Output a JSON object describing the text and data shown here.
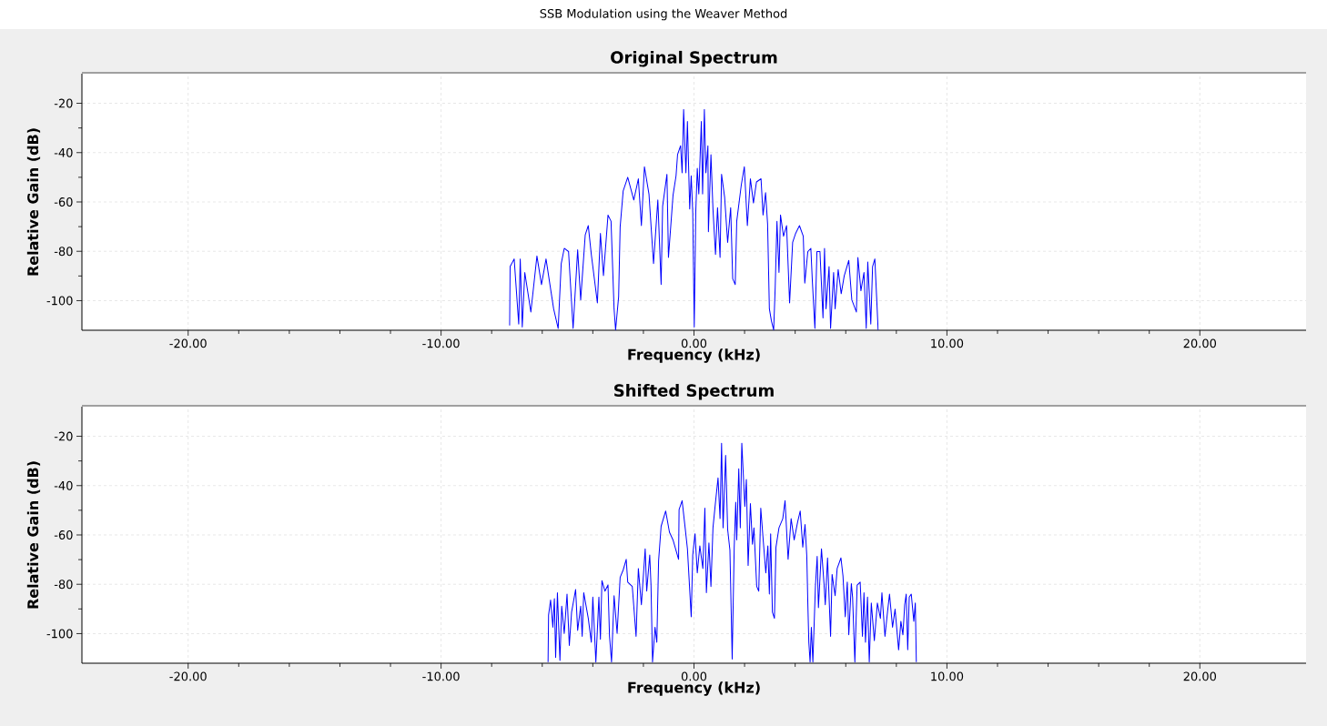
{
  "chart_data": [
    {
      "type": "line",
      "title": "Original Spectrum",
      "xlabel": "Frequency (kHz)",
      "ylabel": "Relative Gain (dB)",
      "annotations": [
        "SSB Modulation using the Weaver Method"
      ],
      "xlim": [
        -24.2,
        24.2
      ],
      "ylim": [
        -112,
        -8
      ],
      "xticks": [
        {
          "value": -20,
          "label": "-20.00"
        },
        {
          "value": -10,
          "label": "-10.00"
        },
        {
          "value": 0,
          "label": "0.00"
        },
        {
          "value": 10,
          "label": "10.00"
        },
        {
          "value": 20,
          "label": "20.00"
        }
      ],
      "yticks": [
        -100,
        -80,
        -60,
        -40,
        -20
      ],
      "grid": true,
      "x": [
        -7.29,
        -7.27,
        -7.11,
        -6.93,
        -6.87,
        -6.79,
        -6.69,
        -6.45,
        -6.21,
        -6.03,
        -5.85,
        -5.55,
        -5.37,
        -5.25,
        -5.13,
        -4.96,
        -4.78,
        -4.6,
        -4.48,
        -4.3,
        -4.18,
        -4.06,
        -3.82,
        -3.7,
        -3.58,
        -3.4,
        -3.28,
        -3.16,
        -3.1,
        -2.98,
        -2.92,
        -2.8,
        -2.62,
        -2.38,
        -2.2,
        -2.08,
        -1.96,
        -1.78,
        -1.6,
        -1.43,
        -1.3,
        -1.24,
        -1.07,
        -1.01,
        -0.83,
        -0.71,
        -0.65,
        -0.53,
        -0.47,
        -0.41,
        -0.32,
        -0.26,
        -0.17,
        -0.11,
        -0.05,
        0.01,
        0.07,
        0.13,
        0.19,
        0.29,
        0.34,
        0.41,
        0.47,
        0.55,
        0.57,
        0.67,
        0.75,
        0.85,
        0.93,
        1.03,
        1.09,
        1.21,
        1.33,
        1.45,
        1.53,
        1.63,
        1.69,
        1.87,
        1.99,
        2.11,
        2.23,
        2.35,
        2.47,
        2.65,
        2.73,
        2.83,
        2.91,
        2.98,
        3.06,
        3.15,
        3.21,
        3.28,
        3.36,
        3.42,
        3.54,
        3.66,
        3.78,
        3.9,
        4.02,
        4.17,
        4.32,
        4.38,
        4.5,
        4.62,
        4.68,
        4.78,
        4.86,
        4.98,
        5.1,
        5.16,
        5.22,
        5.34,
        5.4,
        5.52,
        5.58,
        5.7,
        5.82,
        5.94,
        6.12,
        6.24,
        6.42,
        6.48,
        6.6,
        6.72,
        6.81,
        6.87,
        6.99,
        7.06,
        7.15,
        7.22,
        7.28
      ],
      "series": [
        {
          "color": "#0000ff",
          "values": [
            -110.1,
            -86.2,
            -83.1,
            -109.5,
            -83.1,
            -110.7,
            -88.6,
            -104.6,
            -81.9,
            -93.5,
            -83.1,
            -103.3,
            -111.3,
            -85.0,
            -78.8,
            -80.1,
            -111.3,
            -79.4,
            -99.7,
            -73.3,
            -69.6,
            -81.3,
            -100.9,
            -72.7,
            -89.9,
            -65.3,
            -67.8,
            -103.3,
            -111.9,
            -98.4,
            -70.2,
            -55.5,
            -50.0,
            -59.2,
            -50.6,
            -69.6,
            -45.7,
            -56.8,
            -85.0,
            -59.2,
            -93.5,
            -61.7,
            -48.8,
            -82.5,
            -57.4,
            -49.4,
            -40.8,
            -37.2,
            -48.2,
            -22.5,
            -48.2,
            -27.4,
            -62.9,
            -49.4,
            -64.1,
            -110.7,
            -64.1,
            -46.4,
            -56.8,
            -27.4,
            -56.8,
            -22.5,
            -48.2,
            -37.2,
            -72.1,
            -40.8,
            -62.9,
            -81.3,
            -62.3,
            -82.5,
            -48.8,
            -58.0,
            -76.4,
            -62.3,
            -91.1,
            -93.5,
            -67.8,
            -53.1,
            -45.7,
            -69.6,
            -50.6,
            -60.4,
            -51.9,
            -50.6,
            -65.3,
            -56.2,
            -69.0,
            -103.3,
            -108.2,
            -111.9,
            -94.8,
            -67.8,
            -88.6,
            -65.3,
            -73.9,
            -69.6,
            -100.9,
            -76.4,
            -72.7,
            -69.6,
            -73.9,
            -92.9,
            -80.1,
            -78.8,
            -92.3,
            -111.3,
            -80.1,
            -80.1,
            -107.0,
            -78.8,
            -103.3,
            -86.2,
            -111.3,
            -88.6,
            -103.3,
            -87.4,
            -97.2,
            -89.9,
            -83.7,
            -99.7,
            -104.6,
            -82.5,
            -96.0,
            -88.6,
            -111.3,
            -84.3,
            -109.5,
            -86.2,
            -83.1,
            -98.4,
            -111.9
          ]
        }
      ]
    },
    {
      "type": "line",
      "title": "Shifted Spectrum",
      "xlabel": "Frequency (kHz)",
      "ylabel": "Relative Gain (dB)",
      "xlim": [
        -24.2,
        24.2
      ],
      "ylim": [
        -112,
        -8
      ],
      "xticks": [
        {
          "value": -20,
          "label": "-20.00"
        },
        {
          "value": -10,
          "label": "-10.00"
        },
        {
          "value": 0,
          "label": "0.00"
        },
        {
          "value": 10,
          "label": "10.00"
        },
        {
          "value": 20,
          "label": "20.00"
        }
      ],
      "yticks": [
        -100,
        -80,
        -60,
        -40,
        -20
      ],
      "grid": true,
      "x": [
        -5.77,
        -5.75,
        -5.67,
        -5.58,
        -5.52,
        -5.47,
        -5.4,
        -5.3,
        -5.23,
        -5.13,
        -5.02,
        -4.93,
        -4.84,
        -4.68,
        -4.6,
        -4.48,
        -4.42,
        -4.36,
        -4.18,
        -4.06,
        -4.0,
        -3.88,
        -3.76,
        -3.7,
        -3.64,
        -3.52,
        -3.4,
        -3.34,
        -3.26,
        -3.16,
        -3.04,
        -2.92,
        -2.8,
        -2.68,
        -2.62,
        -2.44,
        -2.29,
        -2.2,
        -2.08,
        -1.93,
        -1.87,
        -1.75,
        -1.7,
        -1.64,
        -1.54,
        -1.47,
        -1.4,
        -1.3,
        -1.12,
        -0.97,
        -0.83,
        -0.61,
        -0.59,
        -0.47,
        -0.35,
        -0.26,
        -0.11,
        -0.05,
        0.04,
        0.13,
        0.23,
        0.35,
        0.43,
        0.49,
        0.59,
        0.67,
        0.75,
        0.85,
        0.95,
        1.03,
        1.09,
        1.15,
        1.25,
        1.33,
        1.42,
        1.51,
        1.59,
        1.65,
        1.69,
        1.77,
        1.83,
        1.89,
        2.01,
        2.07,
        2.14,
        2.23,
        2.31,
        2.37,
        2.48,
        2.56,
        2.64,
        2.74,
        2.84,
        2.92,
        2.98,
        3.03,
        3.1,
        3.18,
        3.24,
        3.36,
        3.51,
        3.6,
        3.72,
        3.84,
        3.96,
        4.1,
        4.2,
        4.3,
        4.39,
        4.46,
        4.5,
        4.54,
        4.59,
        4.64,
        4.7,
        4.8,
        4.87,
        4.92,
        5.04,
        5.14,
        5.19,
        5.28,
        5.4,
        5.46,
        5.58,
        5.66,
        5.81,
        5.89,
        5.98,
        6.06,
        6.12,
        6.22,
        6.27,
        6.36,
        6.45,
        6.57,
        6.66,
        6.72,
        6.78,
        6.86,
        6.93,
        7.01,
        7.13,
        7.25,
        7.37,
        7.43,
        7.55,
        7.65,
        7.73,
        7.85,
        7.95,
        8.09,
        8.18,
        8.26,
        8.33,
        8.39,
        8.45,
        8.51,
        8.59,
        8.69,
        8.75,
        8.79
      ],
      "series": [
        {
          "color": "#0000ff",
          "values": [
            -111.5,
            -92.5,
            -86.4,
            -97.4,
            -85.8,
            -109.7,
            -83.4,
            -110.9,
            -88.9,
            -99.9,
            -84.0,
            -104.8,
            -91.3,
            -82.1,
            -98.7,
            -88.9,
            -101.1,
            -83.4,
            -93.8,
            -103.5,
            -85.2,
            -111.5,
            -85.2,
            -102.3,
            -78.5,
            -82.8,
            -80.3,
            -101.1,
            -111.5,
            -84.6,
            -99.9,
            -77.2,
            -74.2,
            -69.9,
            -79.1,
            -80.9,
            -101.1,
            -73.6,
            -88.3,
            -65.6,
            -82.8,
            -68.1,
            -80.3,
            -111.5,
            -97.4,
            -103.5,
            -70.5,
            -56.5,
            -50.3,
            -58.9,
            -62.0,
            -69.9,
            -49.7,
            -46.1,
            -57.1,
            -65.6,
            -93.2,
            -68.1,
            -59.5,
            -75.4,
            -64.4,
            -73.6,
            -49.1,
            -83.4,
            -63.2,
            -80.9,
            -57.1,
            -46.7,
            -36.9,
            -53.4,
            -22.8,
            -57.1,
            -27.7,
            -57.7,
            -66.2,
            -110.3,
            -65.0,
            -46.7,
            -62.0,
            -33.2,
            -57.1,
            -22.8,
            -48.5,
            -37.5,
            -72.4,
            -47.3,
            -63.8,
            -57.1,
            -80.9,
            -82.8,
            -49.1,
            -62.6,
            -75.4,
            -64.4,
            -84.0,
            -59.5,
            -91.3,
            -93.8,
            -65.0,
            -57.1,
            -53.4,
            -46.1,
            -69.9,
            -53.4,
            -62.0,
            -54.6,
            -50.3,
            -65.0,
            -55.8,
            -68.7,
            -87.6,
            -103.5,
            -111.5,
            -97.4,
            -111.5,
            -80.9,
            -68.7,
            -89.5,
            -65.6,
            -79.7,
            -88.3,
            -69.3,
            -101.1,
            -76.0,
            -84.6,
            -73.6,
            -69.3,
            -76.6,
            -93.2,
            -79.1,
            -100.5,
            -79.7,
            -85.2,
            -111.5,
            -80.3,
            -79.1,
            -101.1,
            -83.4,
            -103.5,
            -85.2,
            -111.5,
            -87.6,
            -102.9,
            -87.6,
            -93.8,
            -83.4,
            -101.1,
            -91.3,
            -84.0,
            -97.4,
            -90.1,
            -106.6,
            -95.0,
            -100.5,
            -88.3,
            -84.0,
            -106.6,
            -85.2,
            -84.0,
            -95.0,
            -87.6,
            -111.5
          ]
        }
      ]
    }
  ]
}
